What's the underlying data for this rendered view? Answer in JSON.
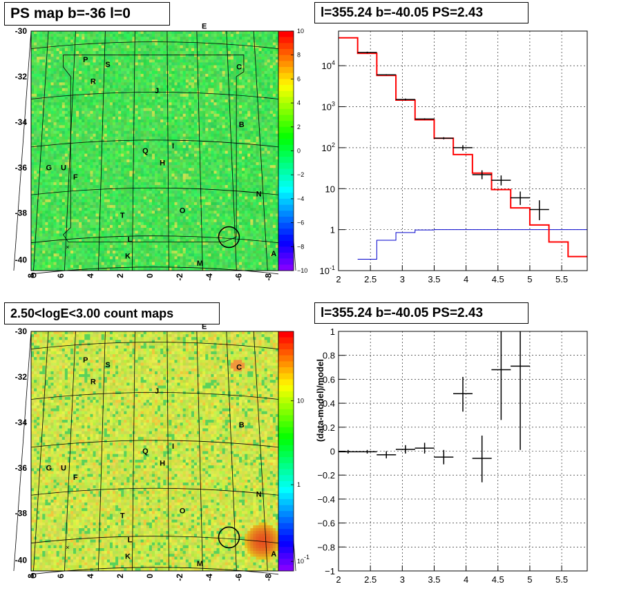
{
  "panels": {
    "ps_map": {
      "title": "PS map b=-36 l=0"
    },
    "spectrum": {
      "title": "l=355.24 b=-40.05 PS=2.43"
    },
    "count_map": {
      "title": "2.50<logE<3.00 count maps"
    },
    "residual": {
      "title": "l=355.24 b=-40.05 PS=2.43"
    }
  },
  "colors": {
    "map_green": "#3fdc5a",
    "count_yellow": "#c8e64a",
    "model_red": "#ff0000",
    "background_blue": "#0000cc",
    "data_black": "#000000"
  },
  "chart_data": [
    {
      "type": "heatmap",
      "name": "ps_map",
      "x_ticks": [
        "8",
        "6",
        "4",
        "2",
        "0",
        "-2",
        "-4",
        "-6",
        "-8"
      ],
      "y_ticks": [
        "-30",
        "-32",
        "-34",
        "-36",
        "-38",
        "-40"
      ],
      "colorbar_ticks": [
        "10",
        "8",
        "6",
        "4",
        "2",
        "0",
        "−2",
        "−4",
        "−6",
        "−8",
        "−10"
      ],
      "colorbar_range": [
        -10,
        10
      ],
      "source_labels": [
        "E",
        "P",
        "S",
        "C",
        "R",
        "J",
        "B",
        "Q",
        "I",
        "H",
        "G",
        "U",
        "F",
        "N",
        "T",
        "O",
        "L",
        "K",
        "M",
        "A",
        "D"
      ],
      "circle_marker": {
        "l": 355.24,
        "b": -40.05
      }
    },
    {
      "type": "line",
      "name": "spectrum",
      "x_ticks": [
        "2",
        "2.5",
        "3",
        "3.5",
        "4",
        "4.5",
        "5",
        "5.5"
      ],
      "y_ticks": [
        "10^-1",
        "1",
        "10",
        "10^2",
        "10^3",
        "10^4"
      ],
      "y_scale": "log",
      "xlim": [
        2,
        5.9
      ],
      "ylim": [
        0.1,
        70000
      ],
      "grid": true,
      "series": [
        {
          "kind": "step",
          "edges": [
            2,
            2.3,
            2.6,
            2.9,
            3.2,
            3.5,
            3.8,
            4.1,
            4.4,
            4.7,
            5.0,
            5.3,
            5.6,
            5.9
          ],
          "values": [
            48000,
            20000,
            5800,
            1450,
            480,
            170,
            68,
            24,
            9.5,
            3.4,
            1.3,
            0.5,
            0.22
          ]
        },
        {
          "kind": "step",
          "edges": [
            2.3,
            2.6,
            2.9,
            3.2,
            3.5,
            3.8,
            4.1,
            4.4,
            4.7,
            5.0,
            5.3,
            5.6,
            5.9
          ],
          "values": [
            0.19,
            0.55,
            0.85,
            0.98,
            1.0,
            1.0,
            1.0,
            1.0,
            1.0,
            1.0,
            1.0,
            1.0
          ]
        },
        {
          "kind": "points",
          "x": [
            2.45,
            2.75,
            3.05,
            3.35,
            3.65,
            3.95,
            4.25,
            4.55,
            4.85,
            5.15
          ],
          "y": [
            21000,
            6000,
            1500,
            500,
            170,
            100,
            22,
            16,
            6,
            3.1
          ],
          "ylo": [
            20000,
            5800,
            1420,
            480,
            160,
            85,
            17,
            12,
            4,
            1.7
          ],
          "yhi": [
            22000,
            6200,
            1580,
            520,
            180,
            115,
            28,
            21,
            8.5,
            5.2
          ]
        }
      ]
    },
    {
      "type": "heatmap",
      "name": "count_map",
      "x_ticks": [
        "8",
        "6",
        "4",
        "2",
        "0",
        "-2",
        "-4",
        "-6",
        "-8"
      ],
      "y_ticks": [
        "-30",
        "-32",
        "-34",
        "-36",
        "-38",
        "-40"
      ],
      "colorbar_ticks": [
        "10",
        "1",
        "10^-1"
      ],
      "colorbar_scale": "log",
      "source_labels": [
        "E",
        "P",
        "S",
        "C",
        "R",
        "J",
        "B",
        "Q",
        "I",
        "H",
        "G",
        "U",
        "F",
        "N",
        "T",
        "O",
        "L",
        "K",
        "M",
        "A",
        "D"
      ]
    },
    {
      "type": "scatter",
      "name": "residual",
      "ylabel": "(data-model)/model",
      "x_ticks": [
        "2",
        "2.5",
        "3",
        "3.5",
        "4",
        "4.5",
        "5",
        "5.5"
      ],
      "y_ticks": [
        "1",
        "0.8",
        "0.6",
        "0.4",
        "0.2",
        "0",
        "−0.2",
        "−0.4",
        "−0.6",
        "−0.8",
        "−1"
      ],
      "xlim": [
        2,
        5.9
      ],
      "ylim": [
        -1,
        1
      ],
      "grid": true,
      "points": {
        "x": [
          2.15,
          2.45,
          2.75,
          3.05,
          3.35,
          3.65,
          3.95,
          4.25,
          4.55,
          4.85
        ],
        "y": [
          -0.005,
          -0.005,
          -0.03,
          0.015,
          0.025,
          -0.05,
          0.48,
          -0.06,
          0.68,
          0.71
        ],
        "ylo": [
          -0.02,
          -0.02,
          -0.06,
          -0.02,
          -0.02,
          -0.11,
          0.33,
          -0.26,
          0.26,
          0.01
        ],
        "yhi": [
          0.01,
          0.01,
          0.0,
          0.05,
          0.07,
          0.01,
          0.62,
          0.13,
          1.0,
          1.0
        ]
      }
    }
  ]
}
